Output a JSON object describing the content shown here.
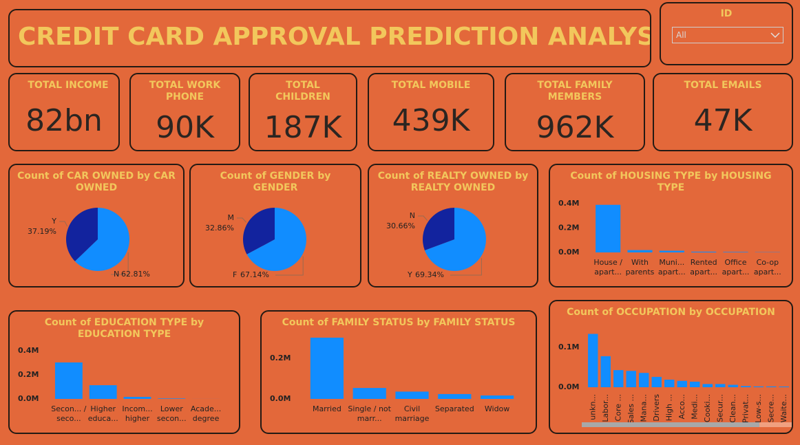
{
  "title": "CREDIT CARD APPROVAL PREDICTION ANALYSIS",
  "slicer": {
    "label": "ID",
    "value": "All"
  },
  "kpis": [
    {
      "label": "TOTAL INCOME",
      "value": "82bn"
    },
    {
      "label": "TOTAL WORK PHONE",
      "value": "90K"
    },
    {
      "label": "TOTAL CHILDREN",
      "value": "187K"
    },
    {
      "label": "TOTAL MOBILE",
      "value": "439K"
    },
    {
      "label": "TOTAL FAMILY MEMBERS",
      "value": "962K"
    },
    {
      "label": "TOTAL EMAILS",
      "value": "47K"
    }
  ],
  "chart_data": [
    {
      "type": "pie",
      "title": "Count of CAR OWNED by CAR OWNED",
      "categories": [
        "N",
        "Y"
      ],
      "values": [
        62.81,
        37.19
      ],
      "value_labels": [
        "62.81%",
        "37.19%"
      ],
      "colors": [
        "#118dff",
        "#12239e"
      ]
    },
    {
      "type": "pie",
      "title": "Count of GENDER by GENDER",
      "categories": [
        "F",
        "M"
      ],
      "values": [
        67.14,
        32.86
      ],
      "value_labels": [
        "67.14%",
        "32.86%"
      ],
      "colors": [
        "#118dff",
        "#12239e"
      ]
    },
    {
      "type": "pie",
      "title": "Count of REALTY OWNED by REALTY OWNED",
      "categories": [
        "Y",
        "N"
      ],
      "values": [
        69.34,
        30.66
      ],
      "value_labels": [
        "69.34%",
        "30.66%"
      ],
      "colors": [
        "#118dff",
        "#12239e"
      ]
    },
    {
      "type": "bar",
      "title": "Count of HOUSING TYPE by HOUSING TYPE",
      "categories": [
        "House / apart...",
        "With parents",
        "Muni... apart...",
        "Rented apart...",
        "Office apart...",
        "Co-op apart..."
      ],
      "values": [
        390000,
        19000,
        14000,
        6000,
        4000,
        2000
      ],
      "color": "#118dff",
      "ylim": [
        0,
        400000
      ],
      "yticks": [
        {
          "value": 0,
          "label": "0.0M"
        },
        {
          "value": 200000,
          "label": "0.2M"
        },
        {
          "value": 400000,
          "label": "0.4M"
        }
      ]
    },
    {
      "type": "bar",
      "title": "Count of EDUCATION TYPE by EDUCATION TYPE",
      "categories": [
        "Secon... / seco...",
        "Higher educa...",
        "Incom... higher",
        "Lower secon...",
        "Acade... degree"
      ],
      "values": [
        303000,
        114000,
        17000,
        4000,
        300
      ],
      "color": "#118dff",
      "ylim": [
        0,
        400000
      ],
      "yticks": [
        {
          "value": 0,
          "label": "0.0M"
        },
        {
          "value": 200000,
          "label": "0.2M"
        },
        {
          "value": 400000,
          "label": "0.4M"
        }
      ]
    },
    {
      "type": "bar",
      "title": "Count of FAMILY STATUS by FAMILY STATUS",
      "categories": [
        "Married",
        "Single / not marr...",
        "Civil marriage",
        "Separated",
        "Widow"
      ],
      "values": [
        302000,
        54000,
        36000,
        24000,
        17000
      ],
      "color": "#118dff",
      "ylim": [
        0,
        300000
      ],
      "yticks": [
        {
          "value": 0,
          "label": "0.0M"
        },
        {
          "value": 200000,
          "label": "0.2M"
        }
      ]
    },
    {
      "type": "bar",
      "title": "Count of OCCUPATION by OCCUPATION",
      "rotate_labels": true,
      "categories": [
        "unkn...",
        "Labor...",
        "Core ...",
        "Sales ...",
        "Mana...",
        "Drivers",
        "High ...",
        "Acco...",
        "Medi...",
        "Cooki...",
        "Secur...",
        "Clean...",
        "Privat...",
        "Low-s...",
        "Secre...",
        "Waite..."
      ],
      "values": [
        134000,
        78000,
        43000,
        41000,
        36000,
        26000,
        19000,
        16000,
        14000,
        8000,
        8000,
        6000,
        3000,
        2000,
        2000,
        1700
      ],
      "color": "#118dff",
      "ylim": [
        0,
        140000
      ],
      "yticks": [
        {
          "value": 0,
          "label": "0.0M"
        },
        {
          "value": 100000,
          "label": "0.1M"
        }
      ]
    }
  ]
}
